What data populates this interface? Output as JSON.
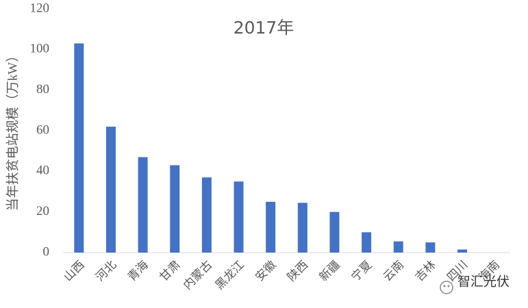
{
  "chart_data": {
    "type": "bar",
    "title": "2017年",
    "y_label": "当年扶贫电站规模（万kW）",
    "categories": [
      "山西",
      "河北",
      "青海",
      "甘肃",
      "内蒙古",
      "黑龙江",
      "安徽",
      "陕西",
      "新疆",
      "宁夏",
      "云南",
      "吉林",
      "四川",
      "海南"
    ],
    "values": [
      103,
      62,
      47,
      43,
      37,
      35,
      25,
      24.5,
      20,
      10,
      5.5,
      5,
      1.5,
      0
    ],
    "color": "#4472c4",
    "ylim": [
      0,
      120
    ],
    "yticks": [
      0,
      20,
      40,
      60,
      80,
      100,
      120
    ],
    "grid": false,
    "watermark": "智汇光伏"
  }
}
